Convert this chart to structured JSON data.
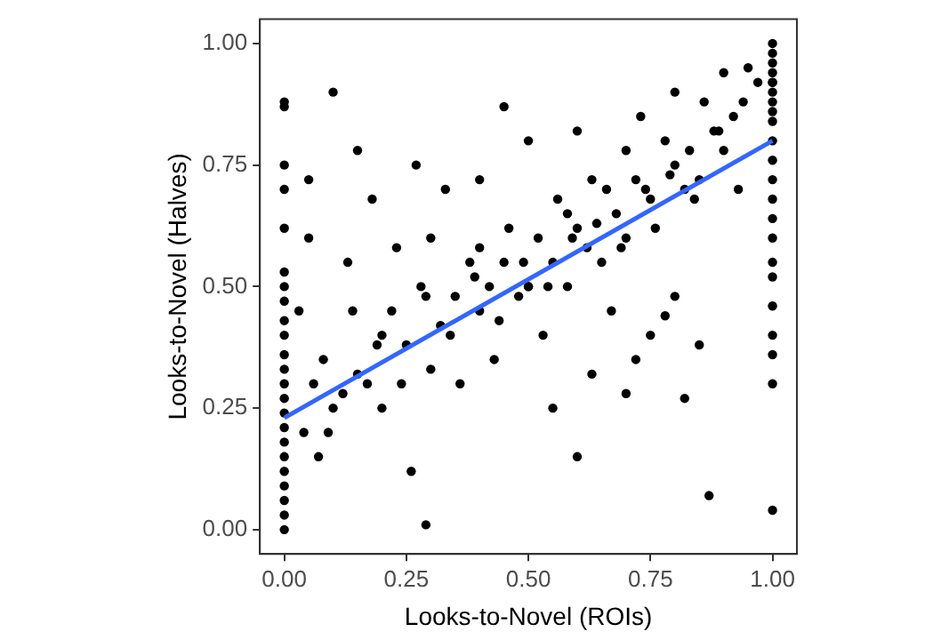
{
  "chart_data": {
    "type": "scatter",
    "xlabel": "Looks-to-Novel (ROIs)",
    "ylabel": "Looks-to-Novel (Halves)",
    "xlim": [
      -0.05,
      1.05
    ],
    "ylim": [
      -0.05,
      1.05
    ],
    "xticks": [
      {
        "value": 0,
        "label": "0.00"
      },
      {
        "value": 0.25,
        "label": "0.25"
      },
      {
        "value": 0.5,
        "label": "0.50"
      },
      {
        "value": 0.75,
        "label": "0.75"
      },
      {
        "value": 1,
        "label": "1.00"
      }
    ],
    "yticks": [
      {
        "value": 0,
        "label": "0.00"
      },
      {
        "value": 0.25,
        "label": "0.25"
      },
      {
        "value": 0.5,
        "label": "0.50"
      },
      {
        "value": 0.75,
        "label": "0.75"
      },
      {
        "value": 1,
        "label": "1.00"
      }
    ],
    "grid": false,
    "legend": false,
    "series": [
      {
        "marker": "circle",
        "color": "#000000",
        "x": [
          0,
          0,
          0,
          0,
          0,
          0,
          0,
          0,
          0,
          0,
          0,
          0,
          0,
          0,
          0,
          0,
          0,
          0,
          0,
          0,
          0,
          0,
          0,
          0.03,
          0.04,
          0.05,
          0.07,
          0.08,
          0.1,
          0.1,
          0.12,
          0.13,
          0.15,
          0.17,
          0.18,
          0.2,
          0.2,
          0.22,
          0.23,
          0.25,
          0.26,
          0.28,
          0.3,
          0.3,
          0.32,
          0.33,
          0.35,
          0.36,
          0.38,
          0.4,
          0.4,
          0.42,
          0.43,
          0.45,
          0.46,
          0.48,
          0.5,
          0.5,
          0.52,
          0.53,
          0.55,
          0.56,
          0.58,
          0.6,
          0.6,
          0.62,
          0.63,
          0.65,
          0.66,
          0.68,
          0.7,
          0.7,
          0.72,
          0.73,
          0.75,
          0.76,
          0.78,
          0.8,
          0.8,
          0.82,
          0.83,
          0.85,
          0.86,
          0.88,
          0.9,
          0.9,
          0.92,
          0.94,
          0.95,
          0.97,
          0.06,
          0.09,
          0.14,
          0.19,
          0.24,
          0.29,
          0.34,
          0.39,
          0.44,
          0.49,
          0.54,
          0.59,
          0.64,
          0.69,
          0.74,
          0.79,
          0.84,
          0.89,
          0.93,
          0.05,
          0.15,
          0.27,
          0.29,
          0.4,
          0.45,
          0.55,
          0.6,
          0.67,
          0.72,
          0.78,
          0.82,
          0.87,
          0.5,
          0.58,
          0.63,
          0.7,
          0.75,
          0.8,
          0.85,
          1,
          1,
          1,
          1,
          1,
          1,
          1,
          1,
          1,
          1,
          1,
          1,
          1,
          1,
          1,
          1,
          1,
          1,
          1,
          1,
          1,
          1,
          1
        ],
        "values": [
          0,
          0.03,
          0.06,
          0.09,
          0.12,
          0.15,
          0.18,
          0.21,
          0.24,
          0.27,
          0.3,
          0.33,
          0.36,
          0.4,
          0.43,
          0.47,
          0.5,
          0.53,
          0.62,
          0.7,
          0.75,
          0.87,
          0.88,
          0.45,
          0.2,
          0.6,
          0.15,
          0.35,
          0.9,
          0.25,
          0.28,
          0.55,
          0.32,
          0.3,
          0.68,
          0.4,
          0.25,
          0.45,
          0.58,
          0.38,
          0.12,
          0.5,
          0.33,
          0.6,
          0.42,
          0.7,
          0.48,
          0.3,
          0.55,
          0.45,
          0.72,
          0.5,
          0.35,
          0.55,
          0.62,
          0.48,
          0.5,
          0.8,
          0.6,
          0.4,
          0.55,
          0.68,
          0.5,
          0.62,
          0.82,
          0.58,
          0.72,
          0.55,
          0.7,
          0.65,
          0.6,
          0.78,
          0.72,
          0.85,
          0.68,
          0.62,
          0.8,
          0.75,
          0.9,
          0.7,
          0.78,
          0.72,
          0.88,
          0.82,
          0.78,
          0.94,
          0.85,
          0.88,
          0.95,
          0.92,
          0.3,
          0.2,
          0.45,
          0.38,
          0.3,
          0.48,
          0.4,
          0.52,
          0.43,
          0.55,
          0.5,
          0.6,
          0.63,
          0.58,
          0.7,
          0.73,
          0.68,
          0.82,
          0.7,
          0.72,
          0.78,
          0.75,
          0.01,
          0.58,
          0.87,
          0.25,
          0.15,
          0.45,
          0.35,
          0.44,
          0.27,
          0.07,
          0.5,
          0.65,
          0.32,
          0.28,
          0.4,
          0.48,
          0.38,
          0.92,
          0.04,
          0.3,
          0.36,
          0.4,
          0.46,
          0.52,
          0.55,
          0.6,
          0.64,
          0.68,
          0.72,
          0.76,
          0.8,
          0.84,
          0.86,
          0.88,
          0.9,
          0.92,
          0.94,
          0.96,
          0.98,
          1
        ]
      },
      {
        "type": "line",
        "color": "#3366ff",
        "x": [
          0,
          1
        ],
        "values": [
          0.23,
          0.8
        ]
      }
    ]
  }
}
